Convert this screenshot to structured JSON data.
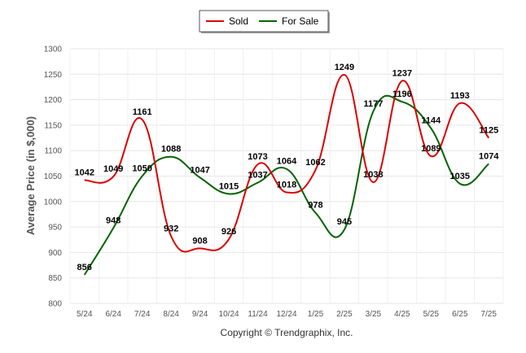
{
  "chart_data": {
    "type": "line",
    "categories": [
      "5/24",
      "6/24",
      "7/24",
      "8/24",
      "9/24",
      "10/24",
      "11/24",
      "12/24",
      "1/25",
      "2/25",
      "3/25",
      "4/25",
      "5/25",
      "6/25",
      "7/25"
    ],
    "series": [
      {
        "name": "Sold",
        "color": "#dd0000",
        "values": [
          1042,
          1049,
          1161,
          932,
          908,
          926,
          1073,
          1018,
          1062,
          1249,
          1038,
          1237,
          1089,
          1193,
          1125
        ]
      },
      {
        "name": "For Sale",
        "color": "#006400",
        "values": [
          856,
          948,
          1050,
          1088,
          1047,
          1015,
          1037,
          1064,
          978,
          945,
          1177,
          1196,
          1144,
          1035,
          1074
        ]
      }
    ],
    "ylabel": "Average Price (in $,000)",
    "yticks": [
      800,
      850,
      900,
      950,
      1000,
      1050,
      1100,
      1150,
      1200,
      1250,
      1300
    ],
    "ylim": [
      800,
      1300
    ],
    "grid": true,
    "legend_position": "top-center"
  },
  "copyright": "Copyright © Trendgraphix, Inc."
}
